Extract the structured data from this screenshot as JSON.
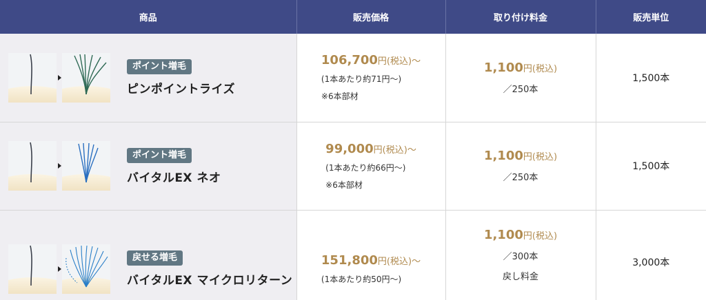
{
  "header": {
    "product": "商品",
    "price": "販売価格",
    "fee": "取り付け料金",
    "unit": "販売単位"
  },
  "rows": [
    {
      "tag": "ポイント増毛",
      "name": "ピンポイントライズ",
      "price": "106,700",
      "price_unit": "円",
      "price_tax": "(税込)",
      "price_suffix": "〜",
      "per": "(1本あたり約71円〜)",
      "note": "※6本部材",
      "fee": "1,100",
      "fee_unit": "円",
      "fee_tax": "(税込)",
      "fee_sub": "／250本",
      "qty": "1,500本",
      "hair_color": "#2f6a55"
    },
    {
      "tag": "ポイント増毛",
      "name": "バイタルEX ネオ",
      "price": "99,000",
      "price_unit": "円",
      "price_tax": "(税込)",
      "price_suffix": "〜",
      "per": "(1本あたり約66円〜)",
      "note": "※6本部材",
      "fee": "1,100",
      "fee_unit": "円",
      "fee_tax": "(税込)",
      "fee_sub": "／250本",
      "qty": "1,500本",
      "hair_color": "#2a6fc0"
    },
    {
      "tag": "戻せる増毛",
      "name": "バイタルEX マイクロリターン",
      "price": "151,800",
      "price_unit": "円",
      "price_tax": "(税込)",
      "price_suffix": "〜",
      "per": "(1本あたり約50円〜)",
      "fee": "1,100",
      "fee_unit": "円",
      "fee_tax": "(税込)",
      "fee_sub": "／300本",
      "fee_sub2": "戻し料金",
      "qty": "3,000本",
      "hair_color": "#2a7fc8"
    }
  ],
  "colors": {
    "header_bg": "#3f4a87",
    "accent_gold": "#b08a4e",
    "tag_bg": "#617783",
    "product_bg": "#efeef2"
  }
}
